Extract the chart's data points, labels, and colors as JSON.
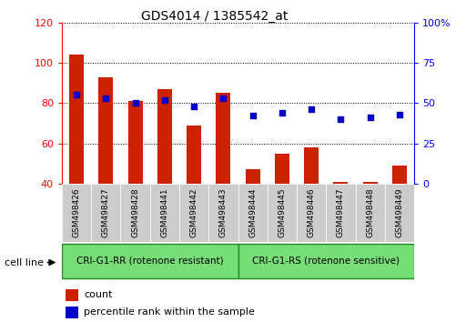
{
  "title": "GDS4014 / 1385542_at",
  "categories": [
    "GSM498426",
    "GSM498427",
    "GSM498428",
    "GSM498441",
    "GSM498442",
    "GSM498443",
    "GSM498444",
    "GSM498445",
    "GSM498446",
    "GSM498447",
    "GSM498448",
    "GSM498449"
  ],
  "bar_values": [
    104,
    93,
    81,
    87,
    69,
    85,
    47,
    55,
    58,
    41,
    41,
    49
  ],
  "scatter_values_pct": [
    55,
    53,
    50,
    52,
    48,
    53,
    42,
    44,
    46,
    40,
    41,
    43
  ],
  "bar_color": "#cc2200",
  "scatter_color": "#0000cc",
  "ylim_left": [
    40,
    120
  ],
  "ylim_right": [
    0,
    100
  ],
  "yticks_left": [
    40,
    60,
    80,
    100,
    120
  ],
  "ytick_labels_left": [
    "40",
    "60",
    "80",
    "100",
    "120"
  ],
  "yticks_right": [
    0,
    25,
    50,
    75,
    100
  ],
  "ytick_labels_right": [
    "0",
    "25",
    "50",
    "75",
    "100%"
  ],
  "group1_label": "CRI-G1-RR (rotenone resistant)",
  "group2_label": "CRI-G1-RS (rotenone sensitive)",
  "group1_count": 6,
  "group2_count": 6,
  "cell_line_label": "cell line",
  "legend_count_label": "count",
  "legend_percentile_label": "percentile rank within the sample",
  "group_bg_color": "#77dd77",
  "group_border_color": "#228B22",
  "tick_label_bg": "#cccccc",
  "bar_width": 0.5,
  "scatter_marker": "s",
  "scatter_size": 25,
  "grid_linestyle": "dotted",
  "grid_color": "black",
  "title_fontsize": 10,
  "tick_fontsize": 8,
  "label_fontsize": 8
}
